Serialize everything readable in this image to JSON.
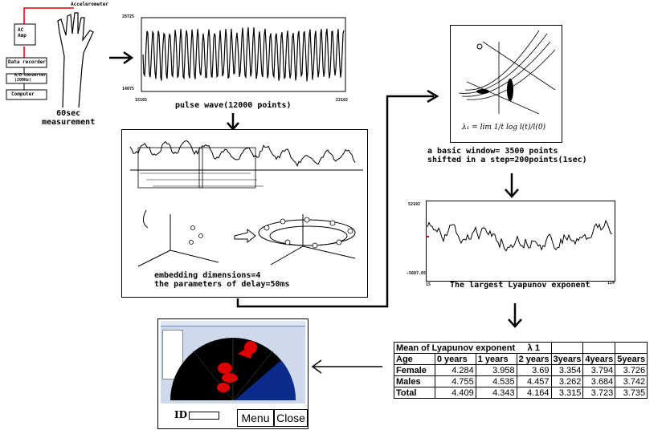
{
  "setup": {
    "accelerometer_label": "Accelerometer",
    "ac_amp_label": "AC\nAmp",
    "data_recorder_label": "Data recorder",
    "filter_label": "A/D converter\n(200Hz)",
    "computer_label": "Computer",
    "caption": "60sec\nmeasurement"
  },
  "pulse_wave": {
    "y_top": "28725",
    "y_bottom": "14075",
    "x_left": "15165",
    "x_right": "22162",
    "caption": "pulse wave(12000 points)"
  },
  "embedding": {
    "caption_line1": "embedding dimensions=4",
    "caption_line2": "the parameters of delay=50ms"
  },
  "lyapunov_diagram": {
    "formula": "λ₁ = lim 1/t log l(t)/l(0)",
    "caption_line1": "a basic window= 3500 points",
    "caption_line2": "shifted in a step=200points(1sec)"
  },
  "lyapunov_plot": {
    "y_top": "52192",
    "y_bottom": "-5687.05",
    "x_left": "15",
    "x_right": "114",
    "caption": "The largest Lyapunov exponent"
  },
  "table": {
    "title": "Mean of Lyapunov exponent",
    "lambda": "λ 1",
    "headers": [
      "Age",
      "0 years",
      "1 years",
      "2 years",
      "3years",
      "4years",
      "5years"
    ],
    "rows": [
      {
        "label": "Female",
        "values": [
          "4.284",
          "3.958",
          "3.69",
          "3.354",
          "3.794",
          "3.726"
        ]
      },
      {
        "label": "Males",
        "values": [
          "4.755",
          "4.535",
          "4.457",
          "3.262",
          "3.684",
          "3.742"
        ]
      },
      {
        "label": "Total",
        "values": [
          "4.409",
          "4.343",
          "4.164",
          "3.315",
          "3.723",
          "3.735"
        ]
      }
    ]
  },
  "app": {
    "id_label": "ID",
    "menu_label": "Menu",
    "close_label": "Close"
  },
  "colors": {
    "red": "#e00000",
    "blue": "#0a2a8c",
    "black": "#000000"
  }
}
